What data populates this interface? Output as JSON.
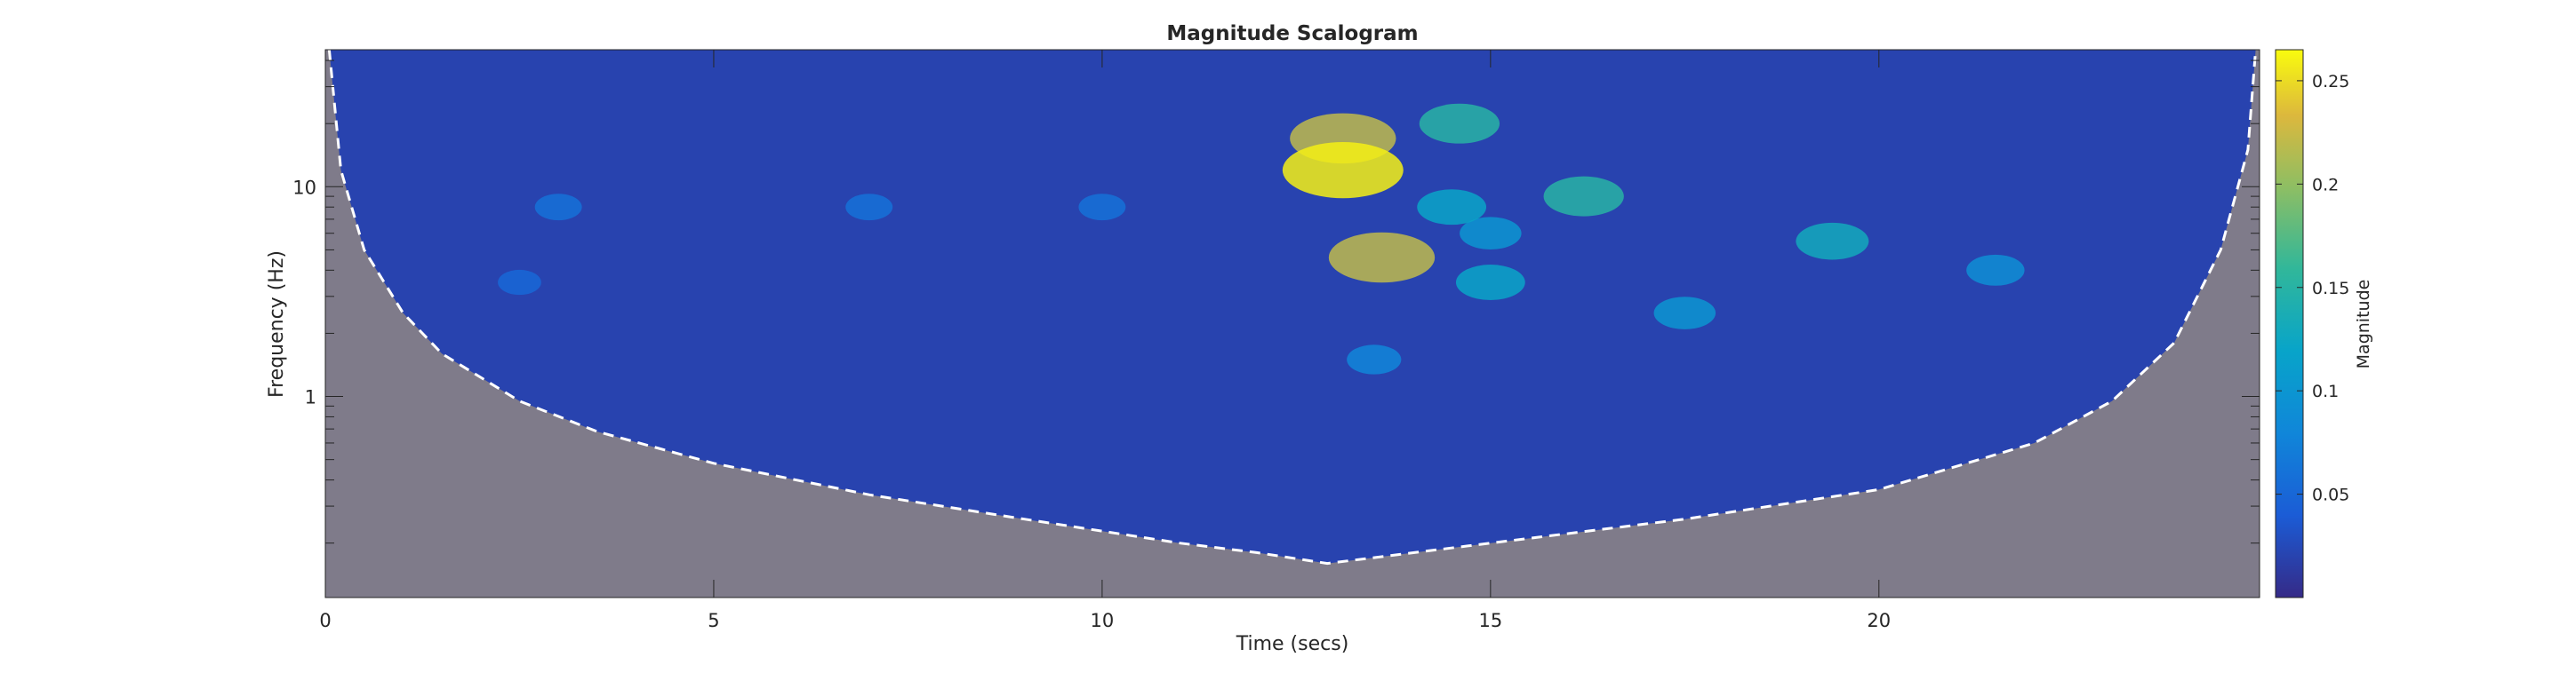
{
  "chart_data": {
    "type": "heatmap",
    "title": "Magnitude Scalogram",
    "xlabel": "Time (secs)",
    "ylabel": "Frequency (Hz)",
    "xlim": [
      0,
      24.9
    ],
    "ylim": [
      0.11,
      45
    ],
    "yscale": "log",
    "x_ticks": [
      0,
      5,
      10,
      15,
      20
    ],
    "x_tick_labels": [
      "0",
      "5",
      "10",
      "15",
      "20"
    ],
    "y_ticks": [
      1,
      10
    ],
    "y_tick_labels": [
      "1",
      "10"
    ],
    "colorbar": {
      "label": "Magnitude",
      "range": [
        0,
        0.265
      ],
      "ticks": [
        0.05,
        0.1,
        0.15,
        0.2,
        0.25
      ],
      "tick_labels": [
        "0.05",
        "0.1",
        "0.15",
        "0.2",
        "0.25"
      ],
      "colormap": "parula"
    },
    "background_magnitude": 0.02,
    "hotspots": [
      {
        "t": 13.1,
        "f": 12.0,
        "magnitude": 0.26
      },
      {
        "t": 13.1,
        "f": 17.0,
        "magnitude": 0.22
      },
      {
        "t": 13.6,
        "f": 4.6,
        "magnitude": 0.22
      },
      {
        "t": 14.6,
        "f": 20.0,
        "magnitude": 0.15
      },
      {
        "t": 16.2,
        "f": 9.0,
        "magnitude": 0.15
      },
      {
        "t": 19.4,
        "f": 5.5,
        "magnitude": 0.13
      },
      {
        "t": 14.5,
        "f": 8.0,
        "magnitude": 0.12
      },
      {
        "t": 15.0,
        "f": 3.5,
        "magnitude": 0.12
      },
      {
        "t": 17.5,
        "f": 2.5,
        "magnitude": 0.1
      },
      {
        "t": 15.0,
        "f": 6.0,
        "magnitude": 0.1
      },
      {
        "t": 21.5,
        "f": 4.0,
        "magnitude": 0.09
      },
      {
        "t": 13.5,
        "f": 1.5,
        "magnitude": 0.08
      },
      {
        "t": 3.0,
        "f": 8.0,
        "magnitude": 0.06
      },
      {
        "t": 7.0,
        "f": 8.0,
        "magnitude": 0.06
      },
      {
        "t": 10.0,
        "f": 8.0,
        "magnitude": 0.06
      },
      {
        "t": 2.5,
        "f": 3.5,
        "magnitude": 0.05
      }
    ],
    "cone_of_influence": {
      "style": "dashed",
      "points": [
        {
          "t": 0.05,
          "f": 45
        },
        {
          "t": 0.2,
          "f": 12
        },
        {
          "t": 0.5,
          "f": 5
        },
        {
          "t": 1.0,
          "f": 2.5
        },
        {
          "t": 1.5,
          "f": 1.6
        },
        {
          "t": 2.5,
          "f": 0.95
        },
        {
          "t": 3.5,
          "f": 0.68
        },
        {
          "t": 5.0,
          "f": 0.48
        },
        {
          "t": 7.0,
          "f": 0.34
        },
        {
          "t": 9.0,
          "f": 0.26
        },
        {
          "t": 11.0,
          "f": 0.2
        },
        {
          "t": 12.0,
          "f": 0.18
        },
        {
          "t": 12.9,
          "f": 0.16
        },
        {
          "t": 15.0,
          "f": 0.2
        },
        {
          "t": 17.5,
          "f": 0.26
        },
        {
          "t": 20.0,
          "f": 0.36
        },
        {
          "t": 22.0,
          "f": 0.6
        },
        {
          "t": 23.0,
          "f": 0.95
        },
        {
          "t": 23.8,
          "f": 1.8
        },
        {
          "t": 24.4,
          "f": 5
        },
        {
          "t": 24.75,
          "f": 15
        },
        {
          "t": 24.85,
          "f": 45
        }
      ]
    }
  }
}
